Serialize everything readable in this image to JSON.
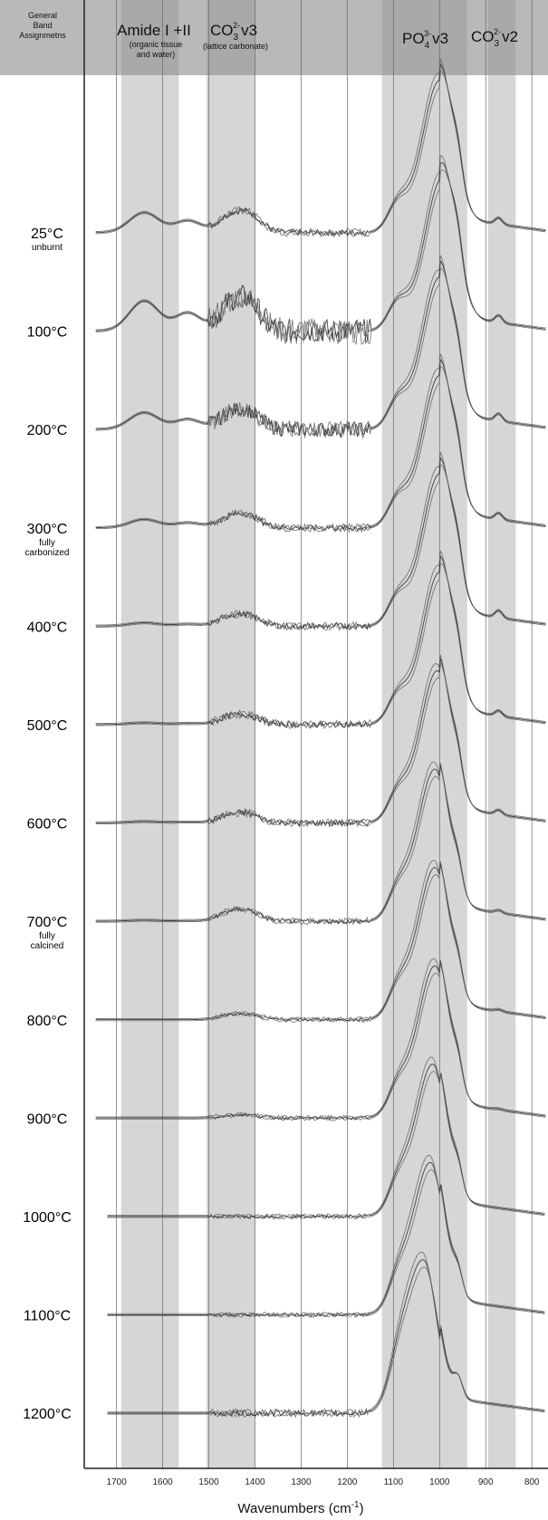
{
  "chart_data": {
    "type": "line",
    "header": {
      "assignments_label": [
        "General",
        "Band",
        "Assignmetns"
      ],
      "amide_label": "Amide I +II",
      "amide_note": [
        "(organic tissue",
        "and water)"
      ],
      "co3_v3_label": "CO3 2- v3",
      "co3_v3_note": "(lattice carbonate)",
      "po4_v3_label": "PO4 3- v3",
      "co3_v2_label": "CO3 2- v2"
    },
    "bands": [
      {
        "name": "Amide I +II",
        "from": 1690,
        "to": 1565
      },
      {
        "name": "CO3 2- v3",
        "from": 1505,
        "to": 1400
      },
      {
        "name": "PO4 3- v3",
        "from": 1125,
        "to": 940
      },
      {
        "name": "CO3 2- v2",
        "from": 895,
        "to": 835
      }
    ],
    "xlabel": "Wavenumbers (cm-1)",
    "xlim": [
      1770,
      765
    ],
    "xticks": [
      1700,
      1600,
      1500,
      1400,
      1300,
      1200,
      1100,
      1000,
      900,
      800
    ],
    "series": [
      {
        "temp": "25°C",
        "note": "unburnt",
        "amide": 0.6,
        "co3": 0.55,
        "po4": 1.0,
        "po4peak": 1000,
        "v2": 0.35,
        "noise": 0.02
      },
      {
        "temp": "100°C",
        "note": "",
        "amide": 0.9,
        "co3": 0.85,
        "po4": 1.0,
        "po4peak": 995,
        "v2": 0.4,
        "noise": 0.08
      },
      {
        "temp": "200°C",
        "note": "",
        "amide": 0.5,
        "co3": 0.5,
        "po4": 1.0,
        "po4peak": 1000,
        "v2": 0.4,
        "noise": 0.05
      },
      {
        "temp": "300°C",
        "note": "fully carbonized",
        "amide": 0.25,
        "co3": 0.35,
        "po4": 1.0,
        "po4peak": 1000,
        "v2": 0.35,
        "noise": 0.02
      },
      {
        "temp": "400°C",
        "note": "",
        "amide": 0.1,
        "co3": 0.3,
        "po4": 1.0,
        "po4peak": 1000,
        "v2": 0.4,
        "noise": 0.02
      },
      {
        "temp": "500°C",
        "note": "",
        "amide": 0.05,
        "co3": 0.25,
        "po4": 1.0,
        "po4peak": 1000,
        "v2": 0.3,
        "noise": 0.02
      },
      {
        "temp": "600°C",
        "note": "",
        "amide": 0.04,
        "co3": 0.25,
        "po4": 1.0,
        "po4peak": 1005,
        "v2": 0.25,
        "noise": 0.02
      },
      {
        "temp": "700°C",
        "note": "fully calcined",
        "amide": 0.03,
        "co3": 0.3,
        "po4": 1.0,
        "po4peak": 1010,
        "v2": 0.15,
        "noise": 0.015
      },
      {
        "temp": "800°C",
        "note": "",
        "amide": 0.0,
        "co3": 0.15,
        "po4": 1.0,
        "po4peak": 1010,
        "v2": 0.1,
        "noise": 0.01
      },
      {
        "temp": "900°C",
        "note": "",
        "amide": 0.0,
        "co3": 0.08,
        "po4": 1.0,
        "po4peak": 1010,
        "v2": 0.05,
        "noise": 0.01
      },
      {
        "temp": "1000°C",
        "note": "",
        "amide": 0.0,
        "co3": 0.0,
        "po4": 1.0,
        "po4peak": 1015,
        "v2": 0.0,
        "noise": 0.01
      },
      {
        "temp": "1100°C",
        "note": "",
        "amide": 0.0,
        "co3": 0.0,
        "po4": 1.0,
        "po4peak": 1020,
        "v2": 0.0,
        "noise": 0.01
      },
      {
        "temp": "1200°C",
        "note": "",
        "amide": 0.0,
        "co3": 0.0,
        "po4": 1.0,
        "po4peak": 1035,
        "v2": 0.0,
        "noise": 0.02
      }
    ],
    "colors": {
      "band": "#cfcfcf",
      "header": "#b7b7b7",
      "line": "#333333",
      "grid": "#666666"
    },
    "grid": true
  }
}
